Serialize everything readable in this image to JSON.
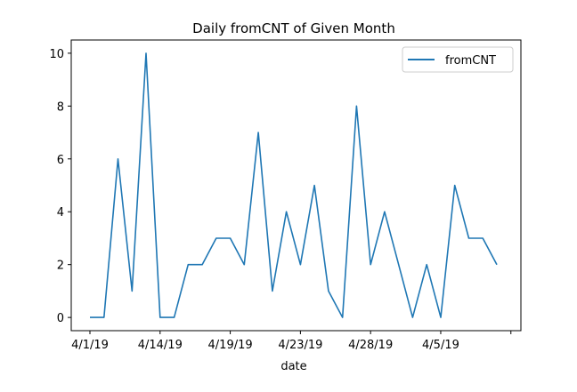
{
  "chart_data": {
    "type": "line",
    "title": "Daily fromCNT of Given Month",
    "xlabel": "date",
    "ylabel": "",
    "x_tick_labels": [
      "4/1/19",
      "4/14/19",
      "4/19/19",
      "4/23/19",
      "4/28/19",
      "4/5/19",
      ""
    ],
    "y_ticks": [
      0,
      2,
      4,
      6,
      8,
      10
    ],
    "ylim": [
      -0.5,
      10.5
    ],
    "grid": false,
    "legend_position": "upper right",
    "series": [
      {
        "name": "fromCNT",
        "color": "#1f77b4",
        "values": [
          0,
          0,
          6,
          1,
          10,
          0,
          0,
          2,
          2,
          3,
          3,
          2,
          7,
          1,
          4,
          2,
          5,
          1,
          0,
          8,
          2,
          4,
          2,
          0,
          2,
          0,
          5,
          3,
          3,
          2
        ]
      }
    ]
  }
}
